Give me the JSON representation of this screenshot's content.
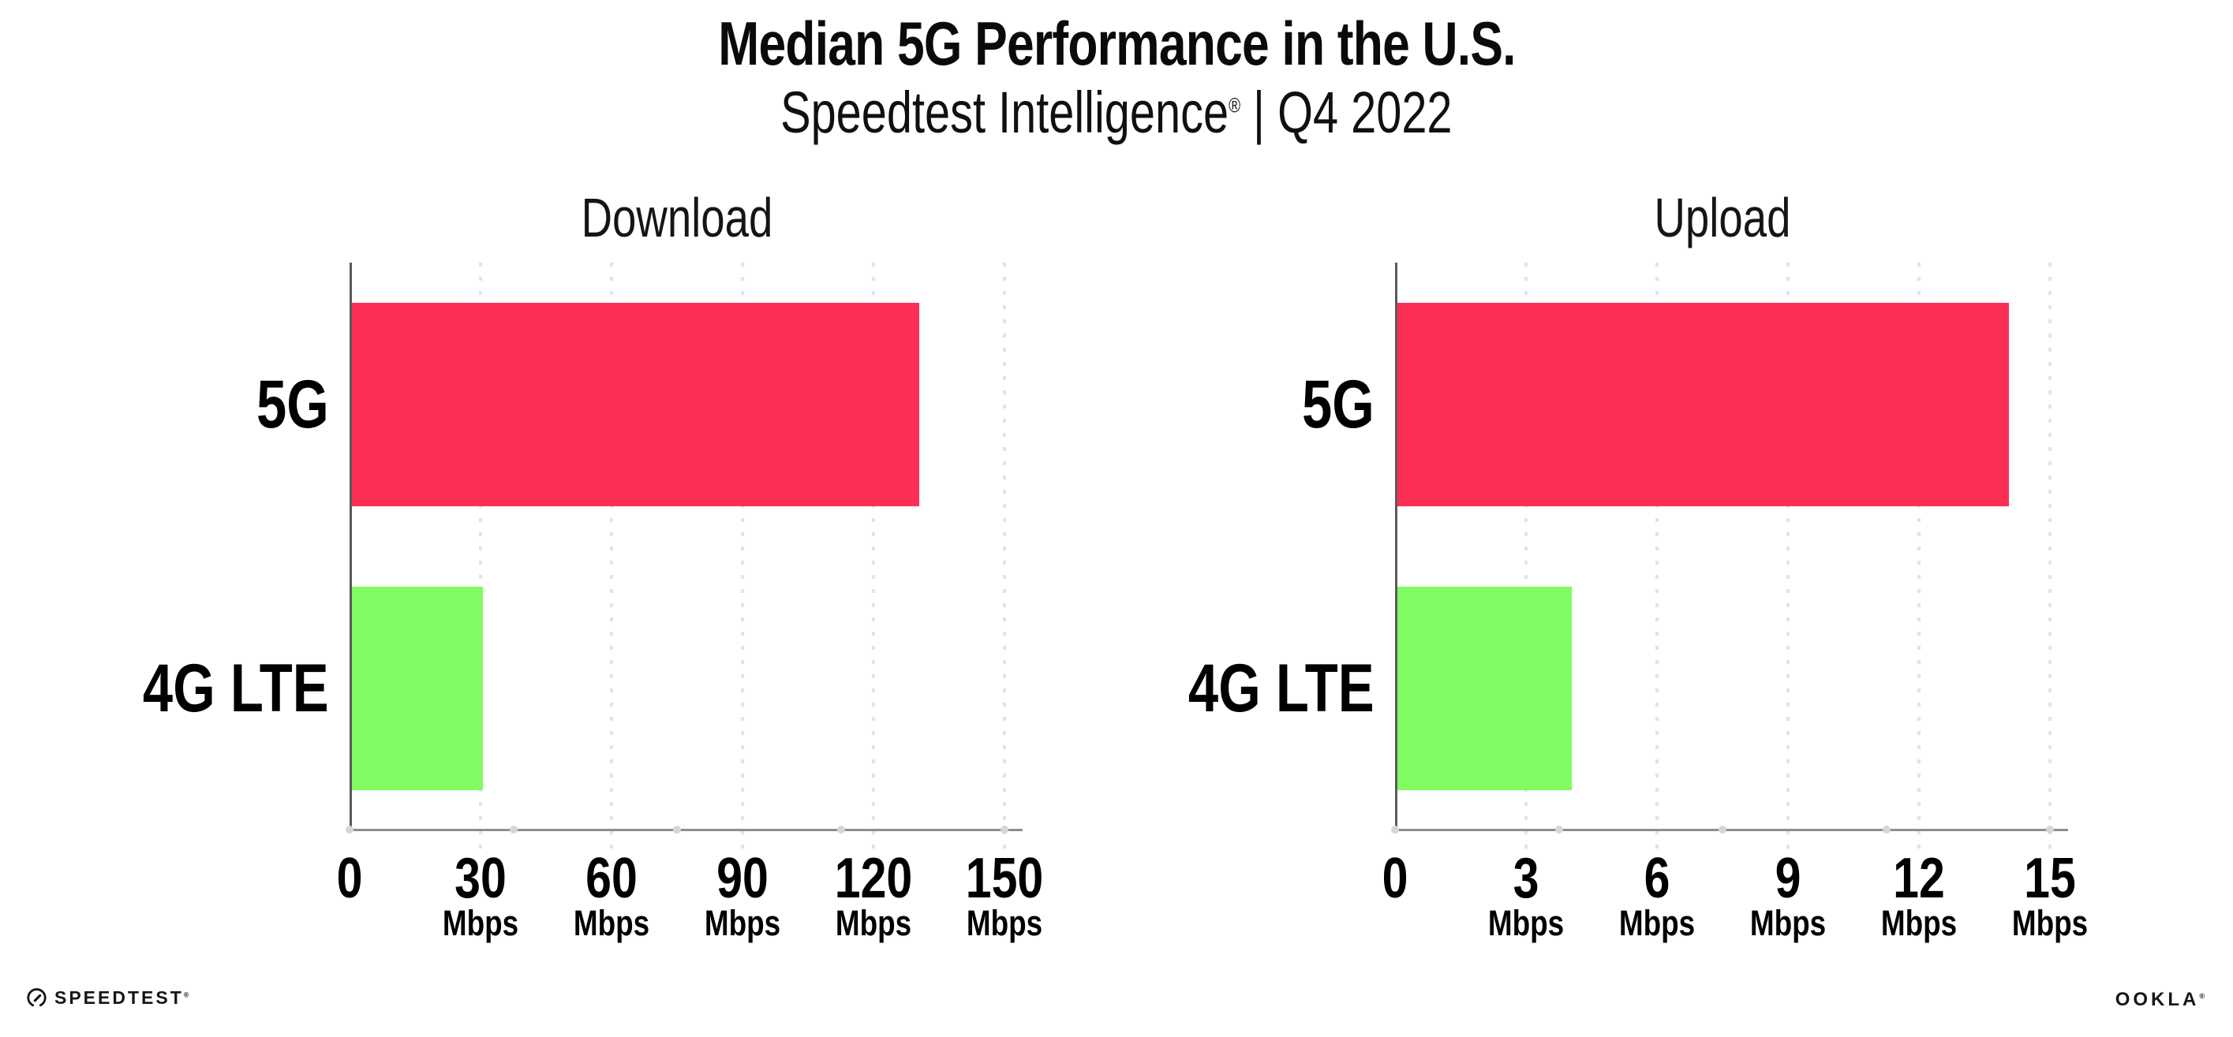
{
  "header": {
    "title": "Median 5G Performance in the U.S.",
    "subtitle_brand": "Speedtest Intelligence",
    "subtitle_reg": "®",
    "subtitle_rest": " | Q4 2022"
  },
  "footer": {
    "speedtest_wordmark": "SPEEDTEST",
    "speedtest_reg": "®",
    "ookla_wordmark": "OOKLA",
    "ookla_reg": "®"
  },
  "palette": {
    "bar_5g": "#FD2E56",
    "bar_4g_lte": "#80FB61",
    "x_axis_line": "#8E8E8E",
    "y_axis_line": "#5A5A5A",
    "gridline": "#E2E2EA",
    "axis_tick_dot": "#D5D5DD",
    "text": "#000000"
  },
  "chart_data": [
    {
      "type": "bar",
      "orientation": "horizontal",
      "title": "Download",
      "categories": [
        "5G",
        "4G LTE"
      ],
      "values": [
        130,
        30
      ],
      "unit": "Mbps",
      "xlabel": "",
      "ylabel": "",
      "xlim": [
        0,
        150
      ],
      "xticks": [
        0,
        30,
        60,
        90,
        120,
        150
      ],
      "grid": "vertical dotted gridlines at each tick",
      "legend": "none",
      "bar_colors": [
        "#FD2E56",
        "#80FB61"
      ]
    },
    {
      "type": "bar",
      "orientation": "horizontal",
      "title": "Upload",
      "categories": [
        "5G",
        "4G LTE"
      ],
      "values": [
        14,
        4
      ],
      "unit": "Mbps",
      "xlabel": "",
      "ylabel": "",
      "xlim": [
        0,
        15
      ],
      "xticks": [
        0,
        3,
        6,
        9,
        12,
        15
      ],
      "grid": "vertical dotted gridlines at each tick",
      "legend": "none",
      "bar_colors": [
        "#FD2E56",
        "#80FB61"
      ]
    }
  ]
}
